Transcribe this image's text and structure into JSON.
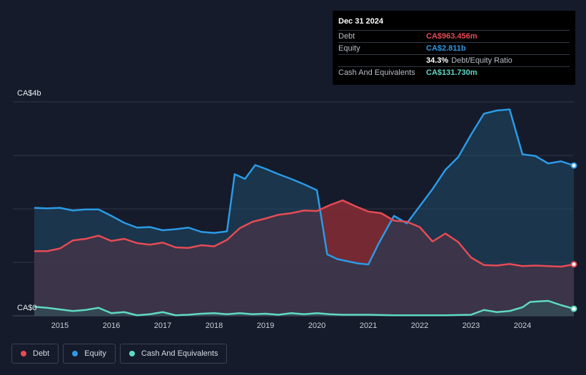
{
  "tooltip": {
    "date": "Dec 31 2024",
    "rows": {
      "debt": {
        "label": "Debt",
        "value": "CA$963.456m"
      },
      "equity": {
        "label": "Equity",
        "value": "CA$2.811b"
      },
      "ratio": {
        "value": "34.3%",
        "label": "Debt/Equity Ratio"
      },
      "cash": {
        "label": "Cash And Equivalents",
        "value": "CA$131.730m"
      }
    }
  },
  "legend": {
    "debt": "Debt",
    "equity": "Equity",
    "cash": "Cash And Equivalents"
  },
  "colors": {
    "debt": "#e64b55",
    "equity": "#2b9ae6",
    "cash": "#5fd9c4",
    "background": "#151b2a"
  },
  "chart_data": {
    "type": "area",
    "ylim": [
      0,
      4000
    ],
    "y_tick_labels": [
      "CA$0",
      "CA$4b"
    ],
    "xlim": [
      2014.5,
      2025.0
    ],
    "x_ticks": [
      2015,
      2016,
      2017,
      2018,
      2019,
      2020,
      2021,
      2022,
      2023,
      2024
    ],
    "x_tick_labels": [
      "2015",
      "2016",
      "2017",
      "2018",
      "2019",
      "2020",
      "2021",
      "2022",
      "2023",
      "2024"
    ],
    "grid": true,
    "legend_position": "bottom-left",
    "series": [
      {
        "name": "Equity",
        "key": "equity",
        "x": [
          2014.5,
          2014.75,
          2015.0,
          2015.25,
          2015.5,
          2015.75,
          2016.0,
          2016.25,
          2016.5,
          2016.75,
          2017.0,
          2017.25,
          2017.5,
          2017.75,
          2018.0,
          2018.25,
          2018.4,
          2018.6,
          2018.8,
          2019.0,
          2019.25,
          2019.5,
          2019.75,
          2020.0,
          2020.2,
          2020.4,
          2020.6,
          2020.8,
          2021.0,
          2021.2,
          2021.5,
          2021.75,
          2022.0,
          2022.25,
          2022.5,
          2022.75,
          2023.0,
          2023.25,
          2023.5,
          2023.75,
          2024.0,
          2024.25,
          2024.5,
          2024.75,
          2025.0
        ],
        "y": [
          2020,
          2010,
          2020,
          1970,
          1990,
          1990,
          1870,
          1740,
          1650,
          1660,
          1600,
          1620,
          1650,
          1570,
          1550,
          1580,
          2650,
          2560,
          2820,
          2750,
          2650,
          2560,
          2460,
          2350,
          1150,
          1060,
          1020,
          980,
          960,
          1350,
          1870,
          1730,
          2050,
          2370,
          2730,
          2970,
          3390,
          3780,
          3840,
          3860,
          3020,
          2990,
          2850,
          2890,
          2811
        ]
      },
      {
        "name": "Debt",
        "key": "debt",
        "x": [
          2014.5,
          2014.75,
          2015.0,
          2015.25,
          2015.5,
          2015.75,
          2016.0,
          2016.25,
          2016.5,
          2016.75,
          2017.0,
          2017.25,
          2017.5,
          2017.75,
          2018.0,
          2018.25,
          2018.5,
          2018.75,
          2019.0,
          2019.25,
          2019.5,
          2019.75,
          2020.0,
          2020.25,
          2020.5,
          2020.75,
          2021.0,
          2021.25,
          2021.5,
          2021.75,
          2022.0,
          2022.25,
          2022.5,
          2022.75,
          2023.0,
          2023.25,
          2023.5,
          2023.75,
          2024.0,
          2024.25,
          2024.5,
          2024.75,
          2025.0
        ],
        "y": [
          1210,
          1210,
          1260,
          1410,
          1440,
          1500,
          1400,
          1440,
          1360,
          1330,
          1370,
          1280,
          1270,
          1320,
          1300,
          1420,
          1640,
          1760,
          1820,
          1890,
          1920,
          1970,
          1960,
          2070,
          2160,
          2050,
          1950,
          1920,
          1780,
          1760,
          1660,
          1390,
          1540,
          1380,
          1090,
          950,
          940,
          970,
          930,
          940,
          930,
          920,
          963
        ]
      },
      {
        "name": "Cash And Equivalents",
        "key": "cash",
        "x": [
          2014.5,
          2014.75,
          2015.0,
          2015.25,
          2015.5,
          2015.75,
          2016.0,
          2016.25,
          2016.5,
          2016.75,
          2017.0,
          2017.25,
          2017.5,
          2017.75,
          2018.0,
          2018.25,
          2018.5,
          2018.75,
          2019.0,
          2019.25,
          2019.5,
          2019.75,
          2020.0,
          2020.25,
          2020.5,
          2020.75,
          2021.0,
          2021.5,
          2022.0,
          2022.5,
          2023.0,
          2023.25,
          2023.5,
          2023.75,
          2024.0,
          2024.15,
          2024.5,
          2024.75,
          2025.0
        ],
        "y": [
          170,
          150,
          120,
          90,
          110,
          150,
          50,
          70,
          10,
          30,
          70,
          10,
          20,
          40,
          50,
          30,
          50,
          30,
          40,
          20,
          50,
          30,
          50,
          30,
          20,
          20,
          20,
          10,
          10,
          10,
          20,
          110,
          70,
          90,
          160,
          260,
          280,
          200,
          132
        ]
      }
    ]
  }
}
